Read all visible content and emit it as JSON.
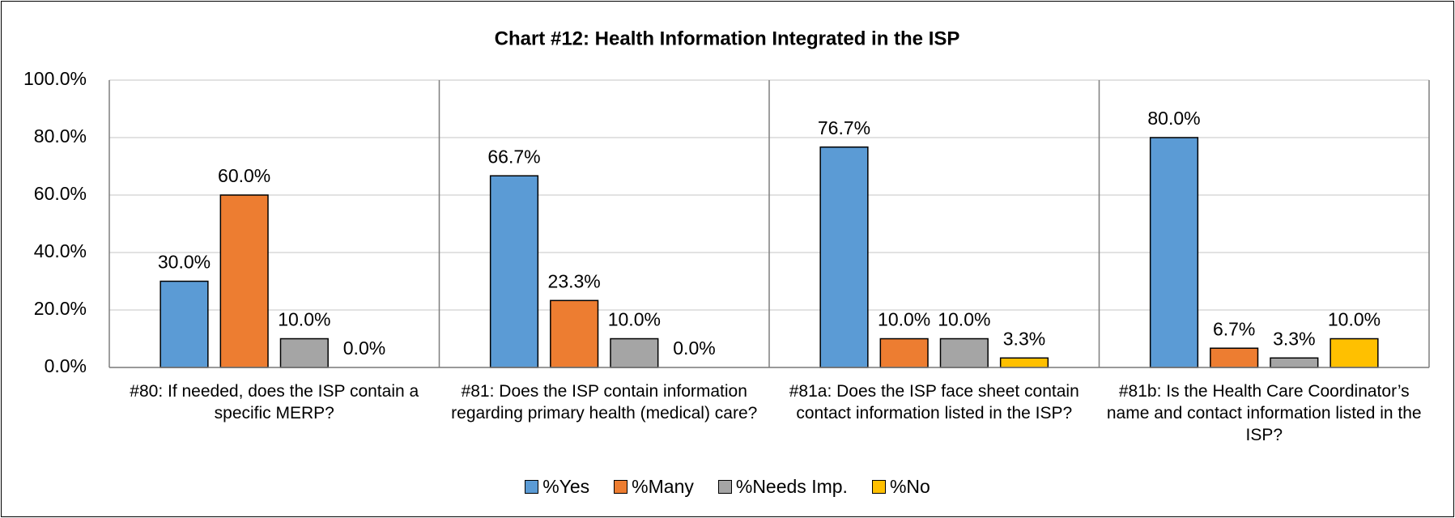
{
  "chart_data": {
    "type": "bar",
    "title": "Chart #12: Health Information Integrated in the ISP",
    "categories": [
      "#80: If needed, does the ISP contain a specific MERP?",
      "#81: Does the ISP contain information regarding primary health (medical) care?",
      "#81a: Does the ISP face sheet contain contact information listed in the ISP?",
      "#81b: Is the Health Care Coordinator’s name and contact information listed in the ISP?"
    ],
    "series": [
      {
        "name": "%Yes",
        "color": "#5b9bd5",
        "values": [
          30,
          66.7,
          76.7,
          80
        ],
        "value_labels": [
          "30.0%",
          "66.7%",
          "76.7%",
          "80.0%"
        ]
      },
      {
        "name": "%Many",
        "color": "#ed7d31",
        "values": [
          60,
          23.3,
          10,
          6.7
        ],
        "value_labels": [
          "60.0%",
          "23.3%",
          "10.0%",
          "6.7%"
        ]
      },
      {
        "name": "%Needs Imp.",
        "color": "#a5a5a5",
        "values": [
          10,
          10,
          10,
          3.3
        ],
        "value_labels": [
          "10.0%",
          "10.0%",
          "10.0%",
          "3.3%"
        ]
      },
      {
        "name": "%No",
        "color": "#ffc000",
        "values": [
          0,
          0,
          3.3,
          10
        ],
        "value_labels": [
          "0.0%",
          "0.0%",
          "3.3%",
          "10.0%"
        ]
      }
    ],
    "ylim": [
      0,
      100
    ],
    "yticks": [
      {
        "value": 0,
        "label": "0.0%"
      },
      {
        "value": 20,
        "label": "20.0%"
      },
      {
        "value": 40,
        "label": "40.0%"
      },
      {
        "value": 60,
        "label": "60.0%"
      },
      {
        "value": 80,
        "label": "80.0%"
      },
      {
        "value": 100,
        "label": "100.0%"
      }
    ],
    "grid": true,
    "legend": "bottom"
  }
}
